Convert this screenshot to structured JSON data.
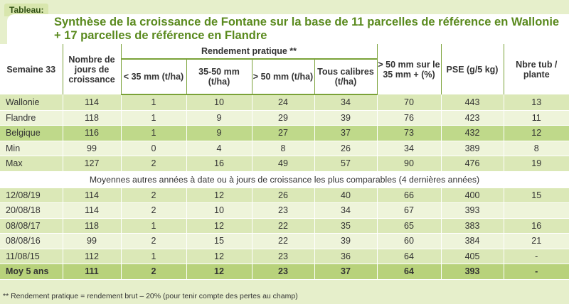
{
  "tab_label": "Tableau:",
  "title": {
    "line1": "Synthèse de la croissance de Fontane sur la base de 11 parcelles de référence en Wallonie",
    "line2": "+ 17 parcelles de référence en Flandre"
  },
  "headers": {
    "semaine": "Semaine 33",
    "nombre": "Nombre de jours de croissance",
    "rendement": "Rendement pratique **",
    "lt35": "< 35 mm (t/ha)",
    "r3550": "35-50 mm (t/ha)",
    "gt50": "> 50 mm (t/ha)",
    "tous": "Tous calibres (t/ha)",
    "pct": "> 50 mm sur le 35 mm + (%)",
    "pse": "PSE (g/5 kg)",
    "nbre": "Nbre tub / plante"
  },
  "rows_top": [
    {
      "label": "Wallonie",
      "jours": "114",
      "lt35": "1",
      "r3550": "10",
      "gt50": "24",
      "tous": "34",
      "pct": "70",
      "pse": "443",
      "nbre": "13"
    },
    {
      "label": "Flandre",
      "jours": "118",
      "lt35": "1",
      "r3550": "9",
      "gt50": "29",
      "tous": "39",
      "pct": "76",
      "pse": "423",
      "nbre": "11"
    },
    {
      "label": "Belgique",
      "jours": "116",
      "lt35": "1",
      "r3550": "9",
      "gt50": "27",
      "tous": "37",
      "pct": "73",
      "pse": "432",
      "nbre": "12"
    },
    {
      "label": "Min",
      "jours": "99",
      "lt35": "0",
      "r3550": "4",
      "gt50": "8",
      "tous": "26",
      "pct": "34",
      "pse": "389",
      "nbre": "8"
    },
    {
      "label": "Max",
      "jours": "127",
      "lt35": "2",
      "r3550": "16",
      "gt50": "49",
      "tous": "57",
      "pct": "90",
      "pse": "476",
      "nbre": "19"
    }
  ],
  "section_note": "Moyennes autres années à date ou à jours de croissance les plus comparables (4 dernières années)",
  "rows_years": [
    {
      "label": "12/08/19",
      "jours": "114",
      "lt35": "2",
      "r3550": "12",
      "gt50": "26",
      "tous": "40",
      "pct": "66",
      "pse": "400",
      "nbre": "15"
    },
    {
      "label": "20/08/18",
      "jours": "114",
      "lt35": "2",
      "r3550": "10",
      "gt50": "23",
      "tous": "34",
      "pct": "67",
      "pse": "393",
      "nbre": ""
    },
    {
      "label": "08/08/17",
      "jours": "118",
      "lt35": "1",
      "r3550": "12",
      "gt50": "22",
      "tous": "35",
      "pct": "65",
      "pse": "383",
      "nbre": "16"
    },
    {
      "label": "08/08/16",
      "jours": "99",
      "lt35": "2",
      "r3550": "15",
      "gt50": "22",
      "tous": "39",
      "pct": "60",
      "pse": "384",
      "nbre": "21"
    },
    {
      "label": "11/08/15",
      "jours": "112",
      "lt35": "1",
      "r3550": "12",
      "gt50": "23",
      "tous": "36",
      "pct": "64",
      "pse": "405",
      "nbre": "-"
    },
    {
      "label": "Moy 5 ans",
      "jours": "111",
      "lt35": "2",
      "r3550": "12",
      "gt50": "23",
      "tous": "37",
      "pct": "64",
      "pse": "393",
      "nbre": "-"
    }
  ],
  "footnote": "** Rendement pratique = rendement brut – 20% (pour tenir compte des pertes au champ)"
}
